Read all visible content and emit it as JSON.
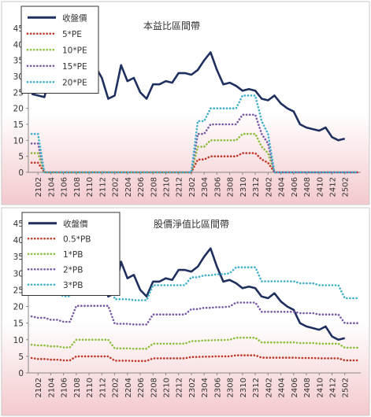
{
  "chart_data": [
    {
      "type": "line",
      "title": "本益比區間帶",
      "x": [
        "2101",
        "2102",
        "2103",
        "2104",
        "2105",
        "2106",
        "2107",
        "2108",
        "2109",
        "2110",
        "2111",
        "2112",
        "2201",
        "2202",
        "2203",
        "2204",
        "2205",
        "2206",
        "2207",
        "2208",
        "2209",
        "2210",
        "2211",
        "2212",
        "2301",
        "2302",
        "2303",
        "2304",
        "2305",
        "2306",
        "2307",
        "2308",
        "2309",
        "2310",
        "2311",
        "2312",
        "2401",
        "2402",
        "2403",
        "2404",
        "2405",
        "2406",
        "2407",
        "2408",
        "2409",
        "2410",
        "2411",
        "2412",
        "2501",
        "2502",
        "2503",
        "2504"
      ],
      "xticks": [
        "2102",
        "2104",
        "2106",
        "2108",
        "2110",
        "2112",
        "2202",
        "2204",
        "2206",
        "2208",
        "2210",
        "2212",
        "2302",
        "2304",
        "2306",
        "2308",
        "2310",
        "2312",
        "2402",
        "2404",
        "2406",
        "2408",
        "2410",
        "2412",
        "2502"
      ],
      "yticks": [
        0,
        5,
        10,
        15,
        20,
        25,
        30,
        35,
        40,
        45
      ],
      "ylim": [
        0,
        45
      ],
      "legend": "top-left",
      "series": [
        {
          "name": "收盤價",
          "color": "#1f2f5e",
          "style": "solid",
          "values": [
            24.5,
            24.0,
            23.5,
            30.5,
            31.0,
            33.0,
            33.5,
            31.0,
            33.5,
            33.0,
            33.0,
            29.5,
            23.0,
            24.0,
            33.5,
            28.5,
            29.5,
            25.0,
            23.0,
            27.5,
            27.5,
            28.5,
            28.0,
            31.0,
            31.0,
            30.5,
            32.0,
            35.0,
            37.5,
            32.0,
            27.5,
            28.0,
            27.0,
            25.5,
            26.0,
            25.5,
            23.0,
            22.5,
            24.0,
            21.5,
            20.0,
            19.0,
            15.0,
            14.0,
            13.5,
            13.0,
            14.0,
            11.0,
            10.0,
            10.5,
            null,
            null
          ]
        },
        {
          "name": "5*PE",
          "color": "#c0392b",
          "style": "dotted",
          "values": [
            3,
            3,
            0,
            0,
            0,
            0,
            0,
            0,
            0,
            0,
            0,
            0,
            0,
            0,
            0,
            0,
            0,
            0,
            0,
            0,
            0,
            0,
            0,
            0,
            0,
            0,
            4,
            4,
            5,
            5,
            5,
            5,
            5,
            6,
            6,
            6,
            4,
            3,
            0,
            0,
            0,
            0,
            0,
            0,
            0,
            0,
            0,
            0,
            0,
            0,
            0,
            0
          ]
        },
        {
          "name": "10*PE",
          "color": "#8cbf3f",
          "style": "dotted",
          "values": [
            6,
            6,
            0,
            0,
            0,
            0,
            0,
            0,
            0,
            0,
            0,
            0,
            0,
            0,
            0,
            0,
            0,
            0,
            0,
            0,
            0,
            0,
            0,
            0,
            0,
            0,
            8,
            8,
            10,
            10,
            10,
            10,
            10,
            12,
            12,
            12,
            8,
            6,
            0,
            0,
            0,
            0,
            0,
            0,
            0,
            0,
            0,
            0,
            0,
            0,
            0,
            0
          ]
        },
        {
          "name": "15*PE",
          "color": "#7a5aa6",
          "style": "dotted",
          "values": [
            9,
            9,
            0,
            0,
            0,
            0,
            0,
            0,
            0,
            0,
            0,
            0,
            0,
            0,
            0,
            0,
            0,
            0,
            0,
            0,
            0,
            0,
            0,
            0,
            0,
            0,
            12,
            12,
            15,
            15,
            15,
            15,
            15,
            18,
            18,
            18,
            12,
            9,
            0,
            0,
            0,
            0,
            0,
            0,
            0,
            0,
            0,
            0,
            0,
            0,
            0,
            0
          ]
        },
        {
          "name": "20*PE",
          "color": "#3fb0c9",
          "style": "dotted",
          "values": [
            12,
            12,
            0,
            0,
            0,
            0,
            0,
            0,
            0,
            0,
            0,
            0,
            0,
            0,
            0,
            0,
            0,
            0,
            0,
            0,
            0,
            0,
            0,
            0,
            0,
            0,
            16,
            16,
            20,
            20,
            20,
            20,
            20,
            24,
            24,
            24,
            16,
            12,
            0,
            0,
            0,
            0,
            0,
            0,
            0,
            0,
            0,
            0,
            0,
            0,
            0,
            0
          ]
        }
      ]
    },
    {
      "type": "line",
      "title": "股價淨值比區間帶",
      "x": [
        "2101",
        "2102",
        "2103",
        "2104",
        "2105",
        "2106",
        "2107",
        "2108",
        "2109",
        "2110",
        "2111",
        "2112",
        "2201",
        "2202",
        "2203",
        "2204",
        "2205",
        "2206",
        "2207",
        "2208",
        "2209",
        "2210",
        "2211",
        "2212",
        "2301",
        "2302",
        "2303",
        "2304",
        "2305",
        "2306",
        "2307",
        "2308",
        "2309",
        "2310",
        "2311",
        "2312",
        "2401",
        "2402",
        "2403",
        "2404",
        "2405",
        "2406",
        "2407",
        "2408",
        "2409",
        "2410",
        "2411",
        "2412",
        "2501",
        "2502",
        "2503",
        "2504"
      ],
      "xticks": [
        "2102",
        "2104",
        "2106",
        "2108",
        "2110",
        "2112",
        "2202",
        "2204",
        "2206",
        "2208",
        "2210",
        "2212",
        "2302",
        "2304",
        "2306",
        "2308",
        "2310",
        "2312",
        "2402",
        "2404",
        "2406",
        "2408",
        "2410",
        "2412",
        "2502"
      ],
      "yticks": [
        0,
        5,
        10,
        15,
        20,
        25,
        30,
        35,
        40,
        45
      ],
      "ylim": [
        0,
        45
      ],
      "legend": "top-left",
      "series": [
        {
          "name": "收盤價",
          "color": "#1f2f5e",
          "style": "solid",
          "values": [
            24.5,
            24.0,
            23.5,
            30.5,
            31.0,
            33.0,
            33.5,
            31.0,
            33.5,
            33.0,
            33.0,
            29.5,
            23.0,
            24.0,
            33.5,
            28.5,
            29.5,
            25.0,
            23.0,
            27.5,
            27.5,
            28.5,
            28.0,
            31.0,
            31.0,
            30.5,
            32.0,
            35.0,
            37.5,
            32.0,
            27.5,
            28.0,
            27.0,
            25.5,
            26.0,
            25.5,
            23.0,
            22.5,
            24.0,
            21.5,
            20.0,
            19.0,
            15.0,
            14.0,
            13.5,
            13.0,
            14.0,
            11.0,
            10.0,
            10.5,
            null,
            null
          ]
        },
        {
          "name": "0.5*PB",
          "color": "#c0392b",
          "style": "dotted",
          "values": [
            4.5,
            4.2,
            4.2,
            4.0,
            4.0,
            3.8,
            3.8,
            5.0,
            5.0,
            5.0,
            5.0,
            5.0,
            5.0,
            3.7,
            3.7,
            3.7,
            3.6,
            3.6,
            3.6,
            4.4,
            4.4,
            4.4,
            4.4,
            4.4,
            4.4,
            4.8,
            4.8,
            4.9,
            4.9,
            5.0,
            5.0,
            5.0,
            5.3,
            5.3,
            5.3,
            5.3,
            4.6,
            4.6,
            4.6,
            4.6,
            4.6,
            4.6,
            4.5,
            4.5,
            4.5,
            4.4,
            4.4,
            4.4,
            4.4,
            3.8,
            3.8,
            3.8
          ]
        },
        {
          "name": "1*PB",
          "color": "#8cbf3f",
          "style": "dotted",
          "values": [
            8.5,
            8.3,
            8.3,
            8.0,
            8.0,
            7.7,
            7.7,
            10.0,
            10.0,
            10.0,
            10.0,
            10.0,
            10.0,
            7.4,
            7.4,
            7.4,
            7.3,
            7.3,
            7.3,
            8.8,
            8.8,
            8.8,
            8.8,
            8.8,
            8.8,
            9.6,
            9.6,
            9.8,
            9.8,
            9.9,
            9.9,
            10.0,
            10.6,
            10.6,
            10.6,
            10.6,
            9.2,
            9.2,
            9.2,
            9.2,
            9.2,
            9.2,
            9.0,
            9.0,
            9.0,
            8.8,
            8.8,
            8.8,
            8.8,
            7.6,
            7.6,
            7.6
          ]
        },
        {
          "name": "2*PB",
          "color": "#7a5aa6",
          "style": "dotted",
          "values": [
            17.0,
            16.6,
            16.6,
            16.0,
            16.0,
            15.4,
            15.4,
            20.2,
            20.2,
            20.2,
            20.2,
            20.2,
            20.2,
            14.8,
            14.8,
            14.8,
            14.6,
            14.6,
            14.6,
            17.6,
            17.6,
            17.6,
            17.6,
            17.6,
            17.6,
            19.2,
            19.2,
            19.6,
            19.6,
            19.8,
            19.8,
            20.0,
            21.2,
            21.2,
            21.2,
            21.2,
            18.4,
            18.4,
            18.4,
            18.4,
            18.4,
            18.4,
            18.0,
            18.0,
            18.0,
            17.6,
            17.6,
            17.6,
            17.6,
            15.0,
            15.0,
            15.0
          ]
        },
        {
          "name": "3*PB",
          "color": "#3fb0c9",
          "style": "dotted",
          "values": [
            25.5,
            24.9,
            24.9,
            24.0,
            24.0,
            23.1,
            23.1,
            30.3,
            30.3,
            30.3,
            30.3,
            30.3,
            30.3,
            22.2,
            22.2,
            22.2,
            21.9,
            21.9,
            21.9,
            26.4,
            26.4,
            26.4,
            26.4,
            26.4,
            26.4,
            28.8,
            28.8,
            29.4,
            29.4,
            29.7,
            29.7,
            30.0,
            31.8,
            31.8,
            31.8,
            31.8,
            27.6,
            27.6,
            27.6,
            27.6,
            27.6,
            27.6,
            27.0,
            27.0,
            27.0,
            26.4,
            26.4,
            26.4,
            26.4,
            22.5,
            22.5,
            22.5
          ]
        }
      ]
    }
  ]
}
